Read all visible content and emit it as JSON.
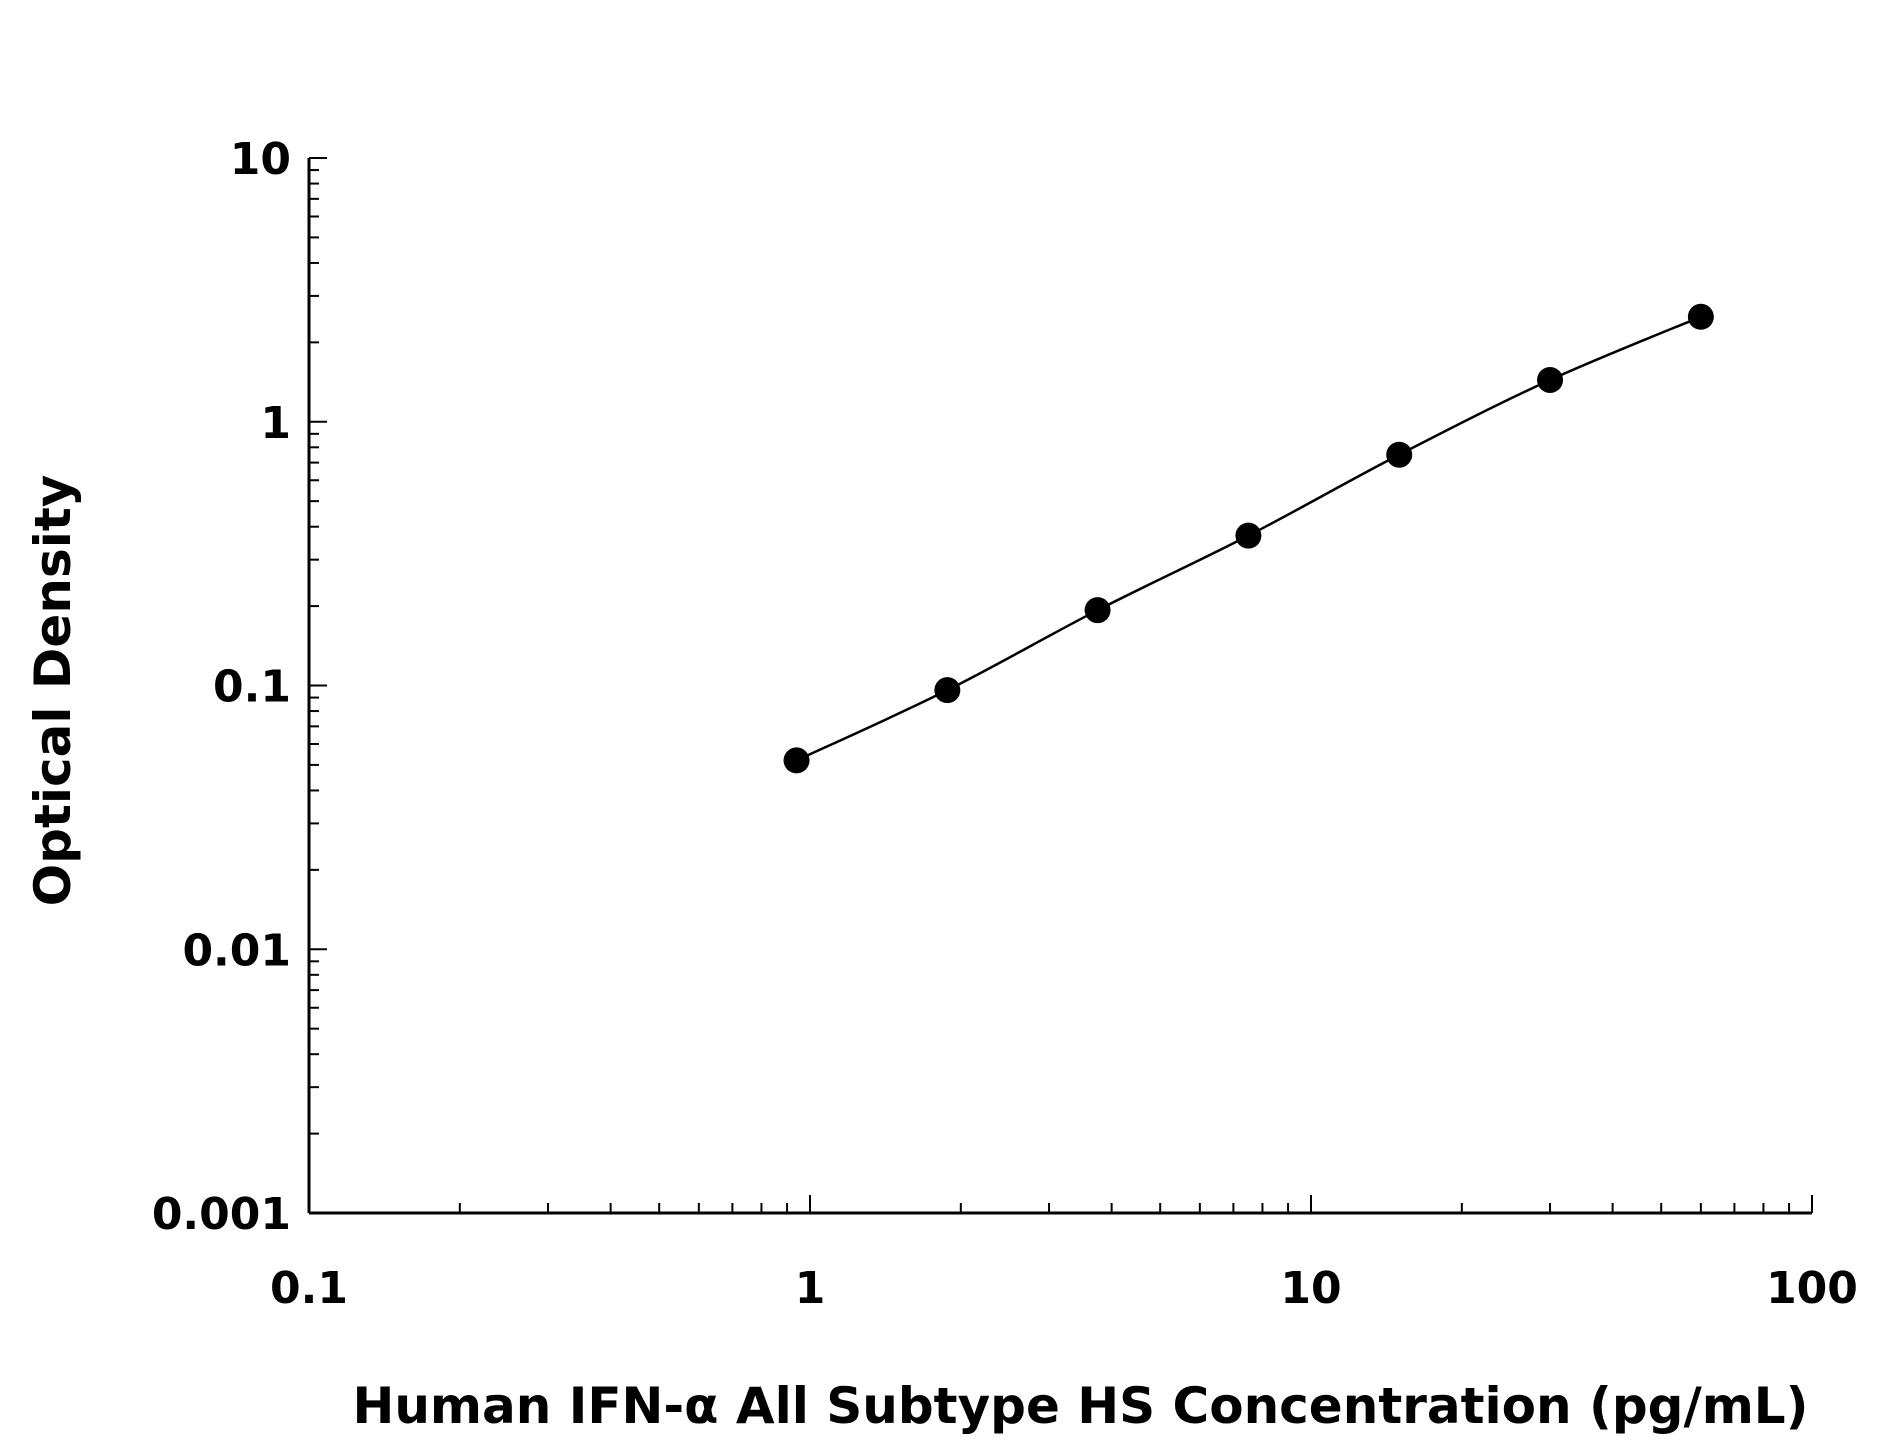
{
  "chart_data": {
    "type": "scatter",
    "xlabel": "Human IFN-α All Subtype HS Concentration (pg/mL)",
    "ylabel": "Optical Density",
    "x_scale": "log",
    "y_scale": "log",
    "xlim": [
      0.1,
      100
    ],
    "ylim": [
      0.001,
      10
    ],
    "x_ticks": [
      "0.1",
      "1",
      "10",
      "100"
    ],
    "y_ticks": [
      "0.001",
      "0.01",
      "0.1",
      "1",
      "10"
    ],
    "grid": false,
    "series": [
      {
        "x": [
          0.94,
          1.88,
          3.75,
          7.5,
          15,
          30,
          60
        ],
        "y": [
          0.052,
          0.096,
          0.193,
          0.37,
          0.75,
          1.44,
          2.5
        ],
        "fit_curve": true
      }
    ],
    "colors": {
      "marker": "#000000",
      "line": "#000000"
    }
  }
}
